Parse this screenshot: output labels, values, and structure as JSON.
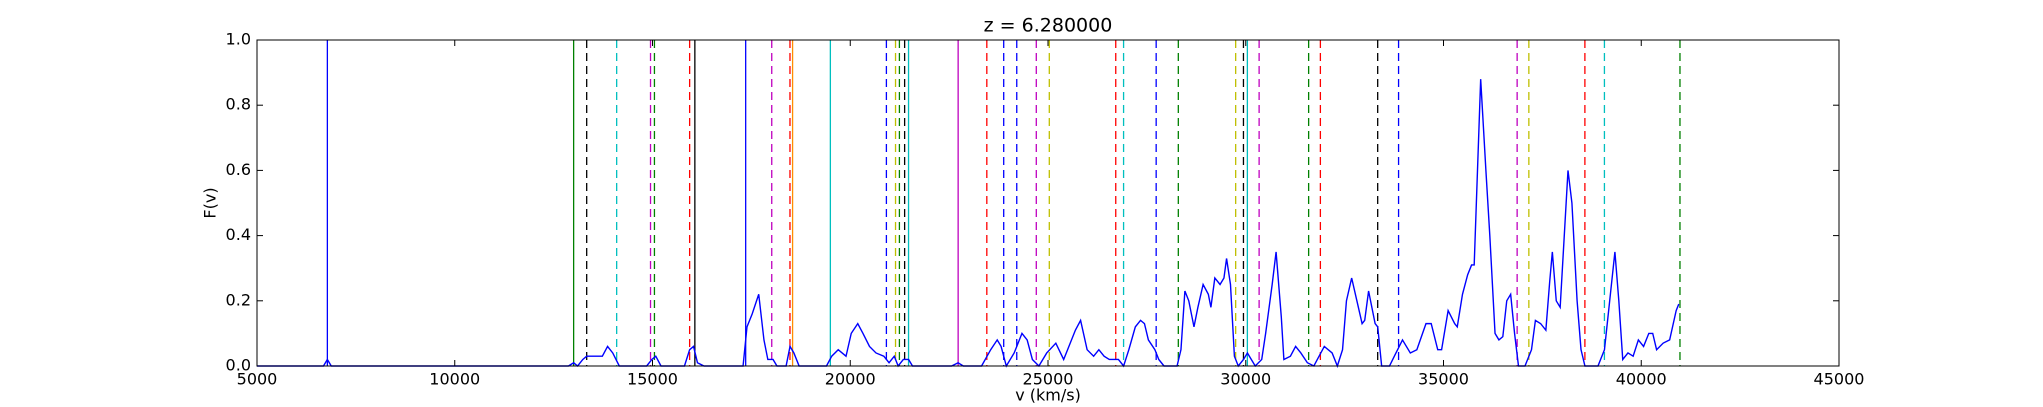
{
  "chart_data": {
    "type": "line",
    "title": "z = 6.280000",
    "xlabel": "v (km/s)",
    "ylabel": "F(v)",
    "color": "#0000ff",
    "x": [
      5000,
      6680,
      6779,
      6878,
      12875,
      13007,
      13106,
      13238,
      13336,
      13567,
      13732,
      13864,
      13995,
      14160,
      14852,
      14984,
      15083,
      15215,
      15808,
      15939,
      16038,
      16137,
      16302,
      17290,
      17389,
      17521,
      17686,
      17818,
      17916,
      18048,
      18147,
      18378,
      18477,
      18575,
      18707,
      19399,
      19531,
      19696,
      19893,
      20025,
      20190,
      20322,
      20487,
      20651,
      20849,
      20981,
      21113,
      21211,
      21343,
      21475,
      21574,
      22562,
      22727,
      22859,
      23320,
      23551,
      23716,
      23814,
      23946,
      24144,
      24342,
      24473,
      24605,
      24770,
      24968,
      25198,
      25396,
      25495,
      25693,
      25824,
      25989,
      26154,
      26286,
      26418,
      26549,
      26681,
      26780,
      26912,
      27044,
      27208,
      27340,
      27439,
      27538,
      27703,
      27801,
      27933,
      28263,
      28362,
      28461,
      28559,
      28691,
      28790,
      28922,
      29054,
      29119,
      29218,
      29350,
      29449,
      29515,
      29614,
      29713,
      29811,
      29943,
      30042,
      30141,
      30240,
      30404,
      30503,
      30668,
      30767,
      30899,
      30964,
      31129,
      31261,
      31393,
      31558,
      31722,
      31854,
      31986,
      32184,
      32316,
      32447,
      32546,
      32678,
      32810,
      32942,
      33008,
      33106,
      33271,
      33337,
      33436,
      33634,
      33798,
      33963,
      34161,
      34326,
      34557,
      34689,
      34854,
      34952,
      35117,
      35282,
      35348,
      35480,
      35611,
      35710,
      35776,
      35940,
      36072,
      36171,
      36303,
      36401,
      36500,
      36599,
      36698,
      36797,
      36896,
      37060,
      37225,
      37324,
      37456,
      37588,
      37686,
      37752,
      37851,
      37950,
      38148,
      38247,
      38378,
      38477,
      38576,
      38906,
      39070,
      39202,
      39334,
      39433,
      39532,
      39664,
      39795,
      39927,
      40059,
      40191,
      40290,
      40388,
      40553,
      40718,
      40883,
      40949
    ],
    "values": [
      0,
      0,
      0.02,
      0,
      0,
      0.01,
      0,
      0.02,
      0.03,
      0.03,
      0.03,
      0.06,
      0.04,
      0,
      0,
      0.02,
      0.03,
      0,
      0,
      0.05,
      0.06,
      0.01,
      0,
      0,
      0.12,
      0.16,
      0.22,
      0.08,
      0.02,
      0.02,
      0,
      0,
      0.06,
      0.04,
      0,
      0,
      0.03,
      0.05,
      0.03,
      0.1,
      0.13,
      0.1,
      0.06,
      0.04,
      0.03,
      0.01,
      0.03,
      0,
      0.02,
      0.02,
      0,
      0,
      0.01,
      0,
      0,
      0.05,
      0.08,
      0.06,
      0,
      0.04,
      0.1,
      0.08,
      0.02,
      0,
      0.04,
      0.07,
      0.02,
      0.05,
      0.11,
      0.14,
      0.05,
      0.03,
      0.05,
      0.03,
      0.02,
      0.02,
      0.02,
      0,
      0.05,
      0.12,
      0.14,
      0.13,
      0.08,
      0.05,
      0.02,
      0,
      0,
      0.05,
      0.23,
      0.2,
      0.12,
      0.18,
      0.25,
      0.22,
      0.18,
      0.27,
      0.25,
      0.27,
      0.33,
      0.25,
      0.03,
      0,
      0.02,
      0.04,
      0.02,
      0,
      0.02,
      0.1,
      0.25,
      0.35,
      0.15,
      0.02,
      0.03,
      0.06,
      0.04,
      0.01,
      0,
      0.03,
      0.06,
      0.04,
      0,
      0.05,
      0.2,
      0.27,
      0.2,
      0.13,
      0.14,
      0.23,
      0.13,
      0.12,
      0,
      0,
      0.04,
      0.08,
      0.04,
      0.05,
      0.13,
      0.13,
      0.05,
      0.05,
      0.17,
      0.13,
      0.12,
      0.22,
      0.28,
      0.31,
      0.31,
      0.88,
      0.6,
      0.4,
      0.1,
      0.08,
      0.09,
      0.2,
      0.22,
      0.1,
      0,
      0,
      0.05,
      0.14,
      0.13,
      0.11,
      0.26,
      0.35,
      0.2,
      0.18,
      0.6,
      0.5,
      0.2,
      0.05,
      0,
      0,
      0.05,
      0.2,
      0.35,
      0.2,
      0.02,
      0.04,
      0.03,
      0.08,
      0.06,
      0.1,
      0.1,
      0.05,
      0.07,
      0.08,
      0.17,
      0.19
    ],
    "vlines": [
      {
        "x": 6779,
        "color": "#0000ff",
        "style": "solid"
      },
      {
        "x": 13006,
        "color": "#008000",
        "style": "solid"
      },
      {
        "x": 13336,
        "color": "#000000",
        "style": "dashed"
      },
      {
        "x": 14094,
        "color": "#00bfbf",
        "style": "dashed"
      },
      {
        "x": 14950,
        "color": "#bf00bf",
        "style": "dashed"
      },
      {
        "x": 15049,
        "color": "#008000",
        "style": "dashed"
      },
      {
        "x": 15939,
        "color": "#ff0000",
        "style": "dashed"
      },
      {
        "x": 16071,
        "color": "#000000",
        "style": "solid"
      },
      {
        "x": 17356,
        "color": "#0000ff",
        "style": "solid"
      },
      {
        "x": 18015,
        "color": "#bf00bf",
        "style": "dashed"
      },
      {
        "x": 18476,
        "color": "#ff0000",
        "style": "dashed"
      },
      {
        "x": 18542,
        "color": "#ff8c00",
        "style": "solid"
      },
      {
        "x": 19497,
        "color": "#00bfbf",
        "style": "solid"
      },
      {
        "x": 20914,
        "color": "#0000ff",
        "style": "dashed"
      },
      {
        "x": 21145,
        "color": "#bfbf00",
        "style": "dashed"
      },
      {
        "x": 21243,
        "color": "#008000",
        "style": "dashed"
      },
      {
        "x": 21375,
        "color": "#000000",
        "style": "dashed"
      },
      {
        "x": 21474,
        "color": "#00bfbf",
        "style": "solid"
      },
      {
        "x": 22728,
        "color": "#bf00bf",
        "style": "solid"
      },
      {
        "x": 23453,
        "color": "#ff0000",
        "style": "dashed"
      },
      {
        "x": 23880,
        "color": "#0000ff",
        "style": "dashed"
      },
      {
        "x": 24210,
        "color": "#0000ff",
        "style": "dashed"
      },
      {
        "x": 24704,
        "color": "#bf00bf",
        "style": "dashed"
      },
      {
        "x": 25033,
        "color": "#bfbf00",
        "style": "dashed"
      },
      {
        "x": 26713,
        "color": "#ff0000",
        "style": "dashed"
      },
      {
        "x": 26911,
        "color": "#00bfbf",
        "style": "dashed"
      },
      {
        "x": 27735,
        "color": "#0000ff",
        "style": "dashed"
      },
      {
        "x": 28295,
        "color": "#008000",
        "style": "dashed"
      },
      {
        "x": 29745,
        "color": "#bfbf00",
        "style": "dashed"
      },
      {
        "x": 29942,
        "color": "#000000",
        "style": "dashed"
      },
      {
        "x": 30041,
        "color": "#00bfbf",
        "style": "solid"
      },
      {
        "x": 30338,
        "color": "#bf00bf",
        "style": "dashed"
      },
      {
        "x": 31590,
        "color": "#008000",
        "style": "dashed"
      },
      {
        "x": 31887,
        "color": "#ff0000",
        "style": "dashed"
      },
      {
        "x": 33336,
        "color": "#000000",
        "style": "dashed"
      },
      {
        "x": 33864,
        "color": "#0000ff",
        "style": "dashed"
      },
      {
        "x": 36862,
        "color": "#bf00bf",
        "style": "dashed"
      },
      {
        "x": 37158,
        "color": "#bfbf00",
        "style": "dashed"
      },
      {
        "x": 38575,
        "color": "#ff0000",
        "style": "dashed"
      },
      {
        "x": 39069,
        "color": "#00bfbf",
        "style": "dashed"
      },
      {
        "x": 40979,
        "color": "#008000",
        "style": "dashed"
      }
    ],
    "xlim": [
      5000,
      45000
    ],
    "xticks": [
      5000,
      10000,
      15000,
      20000,
      25000,
      30000,
      35000,
      40000,
      45000
    ],
    "ylim": [
      0,
      1
    ],
    "yticks": [
      {
        "value": 0,
        "label": "0.0"
      },
      {
        "value": 0.2,
        "label": "0.2"
      },
      {
        "value": 0.4,
        "label": "0.4"
      },
      {
        "value": 0.6,
        "label": "0.6"
      },
      {
        "value": 0.8,
        "label": "0.8"
      },
      {
        "value": 1,
        "label": "1.0"
      }
    ],
    "grid": false
  }
}
